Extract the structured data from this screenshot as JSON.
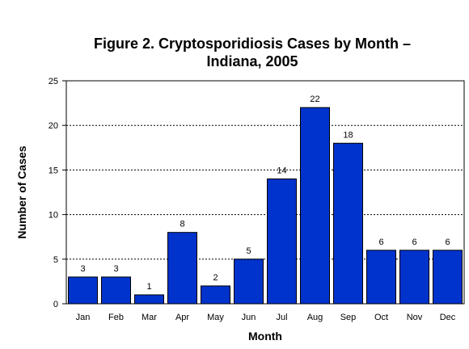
{
  "chart_data": {
    "type": "bar",
    "title_lines": [
      "Figure 2. Cryptosporidiosis Cases by Month –",
      "Indiana, 2005"
    ],
    "xlabel": "Month",
    "ylabel": "Number of Cases",
    "categories": [
      "Jan",
      "Feb",
      "Mar",
      "Apr",
      "May",
      "Jun",
      "Jul",
      "Aug",
      "Sep",
      "Oct",
      "Nov",
      "Dec"
    ],
    "values": [
      3,
      3,
      1,
      8,
      2,
      5,
      14,
      22,
      18,
      6,
      6,
      6
    ],
    "ylim": [
      0,
      25
    ],
    "yticks": [
      0,
      5,
      10,
      15,
      20,
      25
    ],
    "grid": true,
    "legend": "none",
    "bar_color": "#0033cc",
    "gridline_color": "#000000"
  }
}
